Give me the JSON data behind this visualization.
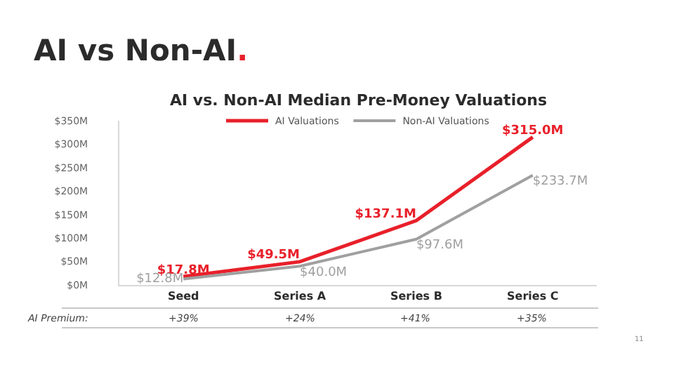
{
  "chart_data": {
    "type": "line",
    "title": "AI vs Non-AI.",
    "subtitle": "AI vs. Non-AI Median Pre-Money Valuations",
    "categories": [
      "Seed",
      "Series A",
      "Series B",
      "Series C"
    ],
    "series": [
      {
        "name": "AI Valuations",
        "color": "#e8202a",
        "values": [
          17.8,
          49.5,
          137.1,
          315.0
        ],
        "value_labels": [
          "$17.8M",
          "$49.5M",
          "$137.1M",
          "$315.0M"
        ]
      },
      {
        "name": "Non-AI Valuations",
        "color": "#a0a0a0",
        "values": [
          12.8,
          40.0,
          97.6,
          233.7
        ],
        "value_labels": [
          "$12.8M",
          "$40.0M",
          "$97.6M",
          "$233.7M"
        ]
      }
    ],
    "ylim": [
      0,
      350
    ],
    "yticks": [
      {
        "value": 0,
        "label": "$0M"
      },
      {
        "value": 50,
        "label": "$50M"
      },
      {
        "value": 100,
        "label": "$100M"
      },
      {
        "value": 150,
        "label": "$150M"
      },
      {
        "value": 200,
        "label": "$200M"
      },
      {
        "value": 250,
        "label": "$250M"
      },
      {
        "value": 300,
        "label": "$300M"
      },
      {
        "value": 350,
        "label": "$350M"
      }
    ],
    "grid": false,
    "legend": "top",
    "marker": "none",
    "line_style": "solid",
    "annotations": [
      "AI Premium:",
      "+39%",
      "+24%",
      "+41%",
      "+35%",
      "11"
    ]
  }
}
